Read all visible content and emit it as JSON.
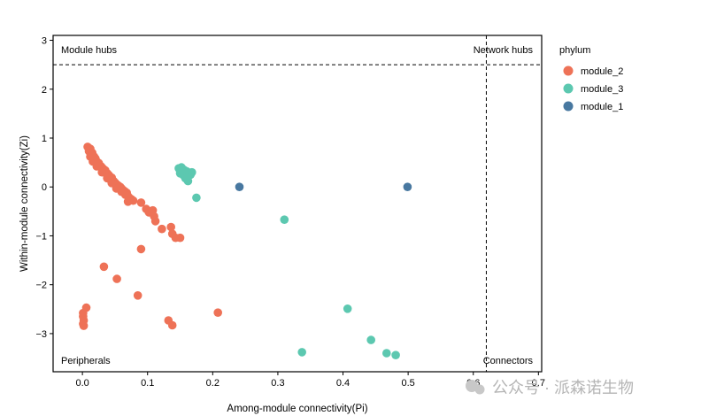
{
  "chart_data": {
    "type": "scatter",
    "xlabel": "Among-module connectivity(Pi)",
    "ylabel": "Within-module connectivity(Zi)",
    "xlim": [
      -0.045,
      0.705
    ],
    "ylim": [
      -3.78,
      3.1
    ],
    "x_ticks": [
      0.0,
      0.1,
      0.2,
      0.3,
      0.4,
      0.5,
      0.6,
      0.7
    ],
    "x_tick_labels": [
      "0.0",
      "0.1",
      "0.2",
      "0.3",
      "0.4",
      "0.5",
      "0.6",
      "0.7"
    ],
    "y_ticks": [
      -3,
      -2,
      -1,
      0,
      1,
      2,
      3
    ],
    "y_tick_labels": [
      "−3",
      "−2",
      "−1",
      "0",
      "1",
      "2",
      "3"
    ],
    "thresholds": {
      "zi": 2.5,
      "pi": 0.62
    },
    "region_labels": {
      "top_left": "Module hubs",
      "top_right": "Network hubs",
      "bottom_left": "Peripherals",
      "bottom_right": "Connectors"
    },
    "legend": {
      "title": "phylum",
      "entries": [
        {
          "name": "module_2",
          "color": "#EE7257"
        },
        {
          "name": "module_3",
          "color": "#5CC8B0"
        },
        {
          "name": "module_1",
          "color": "#4878A0"
        }
      ]
    },
    "series": [
      {
        "name": "module_2",
        "color": "#EE7257",
        "points": [
          [
            0.008,
            0.82
          ],
          [
            0.012,
            0.78
          ],
          [
            0.01,
            0.73
          ],
          [
            0.015,
            0.7
          ],
          [
            0.014,
            0.65
          ],
          [
            0.018,
            0.62
          ],
          [
            0.02,
            0.58
          ],
          [
            0.017,
            0.55
          ],
          [
            0.022,
            0.52
          ],
          [
            0.025,
            0.49
          ],
          [
            0.024,
            0.45
          ],
          [
            0.028,
            0.43
          ],
          [
            0.03,
            0.4
          ],
          [
            0.032,
            0.37
          ],
          [
            0.035,
            0.34
          ],
          [
            0.033,
            0.3
          ],
          [
            0.038,
            0.28
          ],
          [
            0.04,
            0.25
          ],
          [
            0.042,
            0.22
          ],
          [
            0.045,
            0.19
          ],
          [
            0.043,
            0.15
          ],
          [
            0.048,
            0.12
          ],
          [
            0.05,
            0.09
          ],
          [
            0.052,
            0.06
          ],
          [
            0.055,
            0.03
          ],
          [
            0.058,
            0.0
          ],
          [
            0.06,
            -0.03
          ],
          [
            0.062,
            -0.06
          ],
          [
            0.065,
            -0.09
          ],
          [
            0.068,
            -0.12
          ],
          [
            0.066,
            -0.16
          ],
          [
            0.07,
            -0.19
          ],
          [
            0.072,
            -0.22
          ],
          [
            0.075,
            -0.25
          ],
          [
            0.078,
            -0.28
          ],
          [
            0.07,
            -0.3
          ],
          [
            0.06,
            -0.1
          ],
          [
            0.052,
            -0.03
          ],
          [
            0.045,
            0.08
          ],
          [
            0.038,
            0.18
          ],
          [
            0.03,
            0.3
          ],
          [
            0.022,
            0.42
          ],
          [
            0.016,
            0.52
          ],
          [
            0.012,
            0.62
          ],
          [
            0.09,
            -0.32
          ],
          [
            0.098,
            -0.45
          ],
          [
            0.102,
            -0.52
          ],
          [
            0.108,
            -0.48
          ],
          [
            0.11,
            -0.6
          ],
          [
            0.112,
            -0.7
          ],
          [
            0.122,
            -0.86
          ],
          [
            0.136,
            -0.82
          ],
          [
            0.138,
            -0.96
          ],
          [
            0.143,
            -1.04
          ],
          [
            0.15,
            -1.04
          ],
          [
            0.09,
            -1.27
          ],
          [
            0.033,
            -1.63
          ],
          [
            0.053,
            -1.88
          ],
          [
            0.085,
            -2.22
          ],
          [
            0.208,
            -2.57
          ],
          [
            0.006,
            -2.47
          ],
          [
            0.001,
            -2.58
          ],
          [
            0.001,
            -2.65
          ],
          [
            0.002,
            -2.73
          ],
          [
            0.001,
            -2.8
          ],
          [
            0.002,
            -2.84
          ],
          [
            0.132,
            -2.73
          ],
          [
            0.138,
            -2.83
          ]
        ]
      },
      {
        "name": "module_3",
        "color": "#5CC8B0",
        "points": [
          [
            0.148,
            0.38
          ],
          [
            0.152,
            0.4
          ],
          [
            0.156,
            0.35
          ],
          [
            0.16,
            0.32
          ],
          [
            0.163,
            0.28
          ],
          [
            0.15,
            0.28
          ],
          [
            0.155,
            0.24
          ],
          [
            0.158,
            0.18
          ],
          [
            0.162,
            0.12
          ],
          [
            0.166,
            0.25
          ],
          [
            0.168,
            0.3
          ],
          [
            0.153,
            0.33
          ],
          [
            0.175,
            -0.22
          ],
          [
            0.31,
            -0.67
          ],
          [
            0.407,
            -2.49
          ],
          [
            0.337,
            -3.38
          ],
          [
            0.443,
            -3.13
          ],
          [
            0.467,
            -3.4
          ],
          [
            0.481,
            -3.44
          ]
        ]
      },
      {
        "name": "module_1",
        "color": "#4878A0",
        "points": [
          [
            0.241,
            0.0
          ],
          [
            0.499,
            0.0
          ]
        ]
      }
    ]
  },
  "watermark": "公众号 · 派森诺生物"
}
